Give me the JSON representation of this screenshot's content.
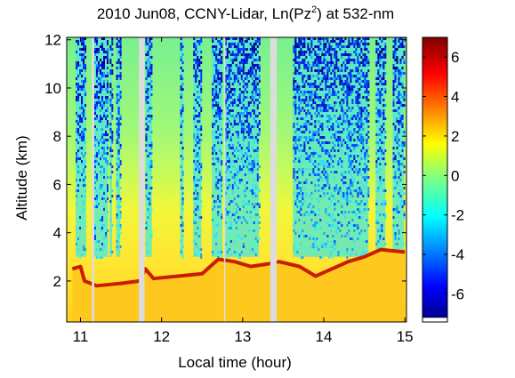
{
  "chart_data": {
    "type": "heatmap",
    "title": {
      "prefix": "2010 Jun08, CCNY-Lidar, Ln(Pz",
      "superscript": "2",
      "suffix": ") at 532-nm"
    },
    "xlabel": "Local time (hour)",
    "ylabel": "Altitude (km)",
    "x_ticks": [
      11,
      12,
      13,
      14,
      15
    ],
    "y_ticks": [
      2,
      4,
      6,
      8,
      10,
      12
    ],
    "xlim": [
      10.83,
      15.02
    ],
    "ylim": [
      0.3,
      12.1
    ],
    "grid": false,
    "colorbar": {
      "ticks": [
        6,
        4,
        2,
        0,
        -2,
        -4,
        -6
      ],
      "tick_labels": [
        "6",
        "4",
        "2",
        "0",
        "-2",
        "-4",
        "-6"
      ],
      "range": [
        -7.2,
        7.0
      ],
      "colormap": "jet",
      "location": "right"
    },
    "data_gaps_hour": [
      [
        11.14,
        11.17
      ],
      [
        11.72,
        11.79
      ],
      [
        12.77,
        12.78
      ],
      [
        13.34,
        13.42
      ]
    ],
    "clear_air_columns_hour": [
      [
        10.94,
        11.07
      ],
      [
        11.17,
        11.34
      ],
      [
        11.36,
        11.39
      ],
      [
        11.44,
        11.49
      ],
      [
        11.8,
        11.88
      ],
      [
        12.23,
        12.27
      ],
      [
        12.39,
        12.49
      ],
      [
        12.62,
        12.75
      ],
      [
        12.78,
        13.2
      ],
      [
        13.62,
        14.55
      ],
      [
        14.64,
        14.76
      ],
      [
        14.85,
        14.99
      ]
    ],
    "boundary_layer_top_km": {
      "x": [
        10.9,
        11.0,
        11.05,
        11.2,
        11.5,
        11.73,
        11.8,
        11.9,
        12.2,
        12.5,
        12.7,
        12.9,
        13.1,
        13.3,
        13.45,
        13.7,
        13.9,
        14.1,
        14.3,
        14.5,
        14.7,
        15.0
      ],
      "y": [
        2.5,
        2.6,
        2.0,
        1.8,
        1.9,
        2.0,
        2.5,
        2.1,
        2.2,
        2.3,
        2.9,
        2.8,
        2.6,
        2.7,
        2.8,
        2.6,
        2.2,
        2.5,
        2.8,
        3.0,
        3.3,
        3.2
      ]
    }
  }
}
